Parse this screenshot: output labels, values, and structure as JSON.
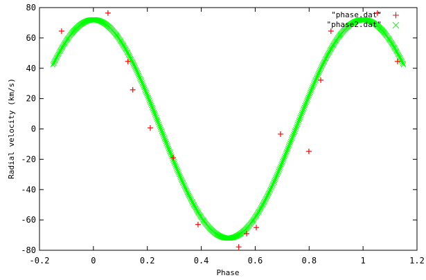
{
  "chart_data": {
    "type": "scatter",
    "title": "",
    "xlabel": "Phase",
    "ylabel": "Radial velocity (km/s)",
    "xlim": [
      -0.2,
      1.2
    ],
    "ylim": [
      -80,
      80
    ],
    "xticks": [
      -0.2,
      0,
      0.2,
      0.4,
      0.6,
      0.8,
      1,
      1.2
    ],
    "xtick_labels": [
      "-0.2",
      "0",
      "0.2",
      "0.4",
      "0.6",
      "0.8",
      "1",
      "1.2"
    ],
    "yticks": [
      -80,
      -60,
      -40,
      -20,
      0,
      20,
      40,
      60,
      80
    ],
    "ytick_labels": [
      "-80",
      "-60",
      "-40",
      "-20",
      "0",
      "20",
      "40",
      "60",
      "80"
    ],
    "grid": false,
    "legend_position": "top-right",
    "series": [
      {
        "name": "\"phase.dat\"",
        "marker": "+",
        "color": "#ff0000",
        "x": [
          -0.118,
          0.054,
          0.128,
          0.146,
          0.211,
          0.296,
          0.388,
          0.539,
          0.568,
          0.604,
          0.694,
          0.799,
          0.843,
          0.881,
          1.053,
          1.128
        ],
        "y": [
          64.5,
          76.4,
          44.5,
          25.8,
          0.7,
          -19.0,
          -63.0,
          -77.8,
          -69.0,
          -65.0,
          -3.4,
          -14.8,
          32.2,
          64.5,
          76.4,
          44.5
        ]
      },
      {
        "name": "\"phase2.dat\"",
        "marker": "x",
        "color": "#00ff00",
        "model": "sinusoid",
        "amplitude": 72,
        "offset": 0,
        "peak_phase": 0,
        "x_range": [
          -0.15,
          1.15
        ],
        "n_points": 520
      }
    ]
  },
  "legend": {
    "items": [
      {
        "label": "\"phase.dat\"",
        "symbol": "+",
        "color": "#ff0000"
      },
      {
        "label": "\"phase2.dat\"",
        "symbol": "×",
        "color": "#00ff00"
      }
    ]
  }
}
